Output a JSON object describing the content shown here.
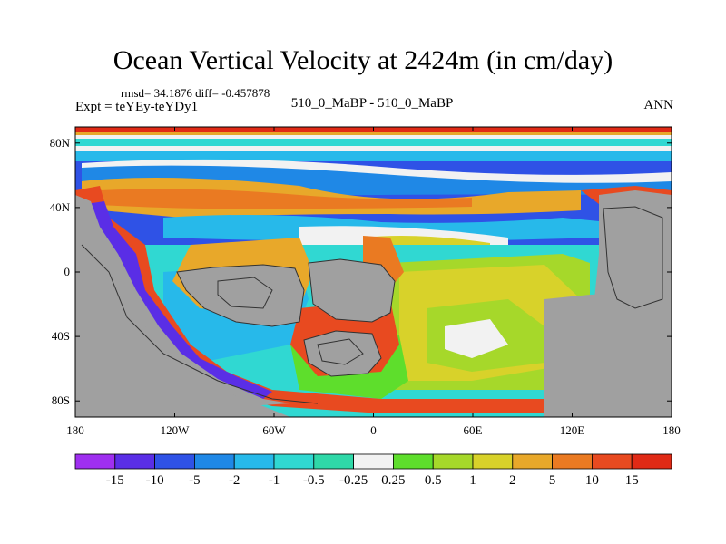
{
  "title": "Ocean Vertical Velocity at 2424m (in cm/day)",
  "stats": "rmsd= 34.1876 diff= -0.457878",
  "expt": "Expt = teYEy-teYDy1",
  "center_label": "510_0_MaBP - 510_0_MaBP",
  "right_label": "ANN",
  "chart_data": {
    "type": "heatmap",
    "lon_range": [
      -180,
      180
    ],
    "lat_range": [
      -90,
      90
    ],
    "lat_ticks": [
      {
        "value": 80,
        "label": "80N"
      },
      {
        "value": 40,
        "label": "40N"
      },
      {
        "value": 0,
        "label": "0"
      },
      {
        "value": -40,
        "label": "40S"
      },
      {
        "value": -80,
        "label": "80S"
      }
    ],
    "lon_ticks": [
      {
        "value": -180,
        "label": "180"
      },
      {
        "value": -120,
        "label": "120W"
      },
      {
        "value": -60,
        "label": "60W"
      },
      {
        "value": 0,
        "label": "0"
      },
      {
        "value": 60,
        "label": "60E"
      },
      {
        "value": 120,
        "label": "120E"
      },
      {
        "value": 180,
        "label": "180"
      }
    ],
    "colorbar": {
      "labels": [
        "-15",
        "-10",
        "-5",
        "-2",
        "-1",
        "-0.5",
        "-0.25",
        "0.25",
        "0.5",
        "1",
        "2",
        "5",
        "10",
        "15"
      ],
      "colors": [
        "#9f2ff0",
        "#5a2ee6",
        "#2f52e6",
        "#1f88e6",
        "#27b9ea",
        "#30d8d2",
        "#2fd8a8",
        "#f2f2f2",
        "#5ede2c",
        "#a6d82a",
        "#d8d22a",
        "#e8a82a",
        "#ea7a22",
        "#e84a20",
        "#e02a16"
      ]
    },
    "land_color": "#a0a0a0"
  }
}
